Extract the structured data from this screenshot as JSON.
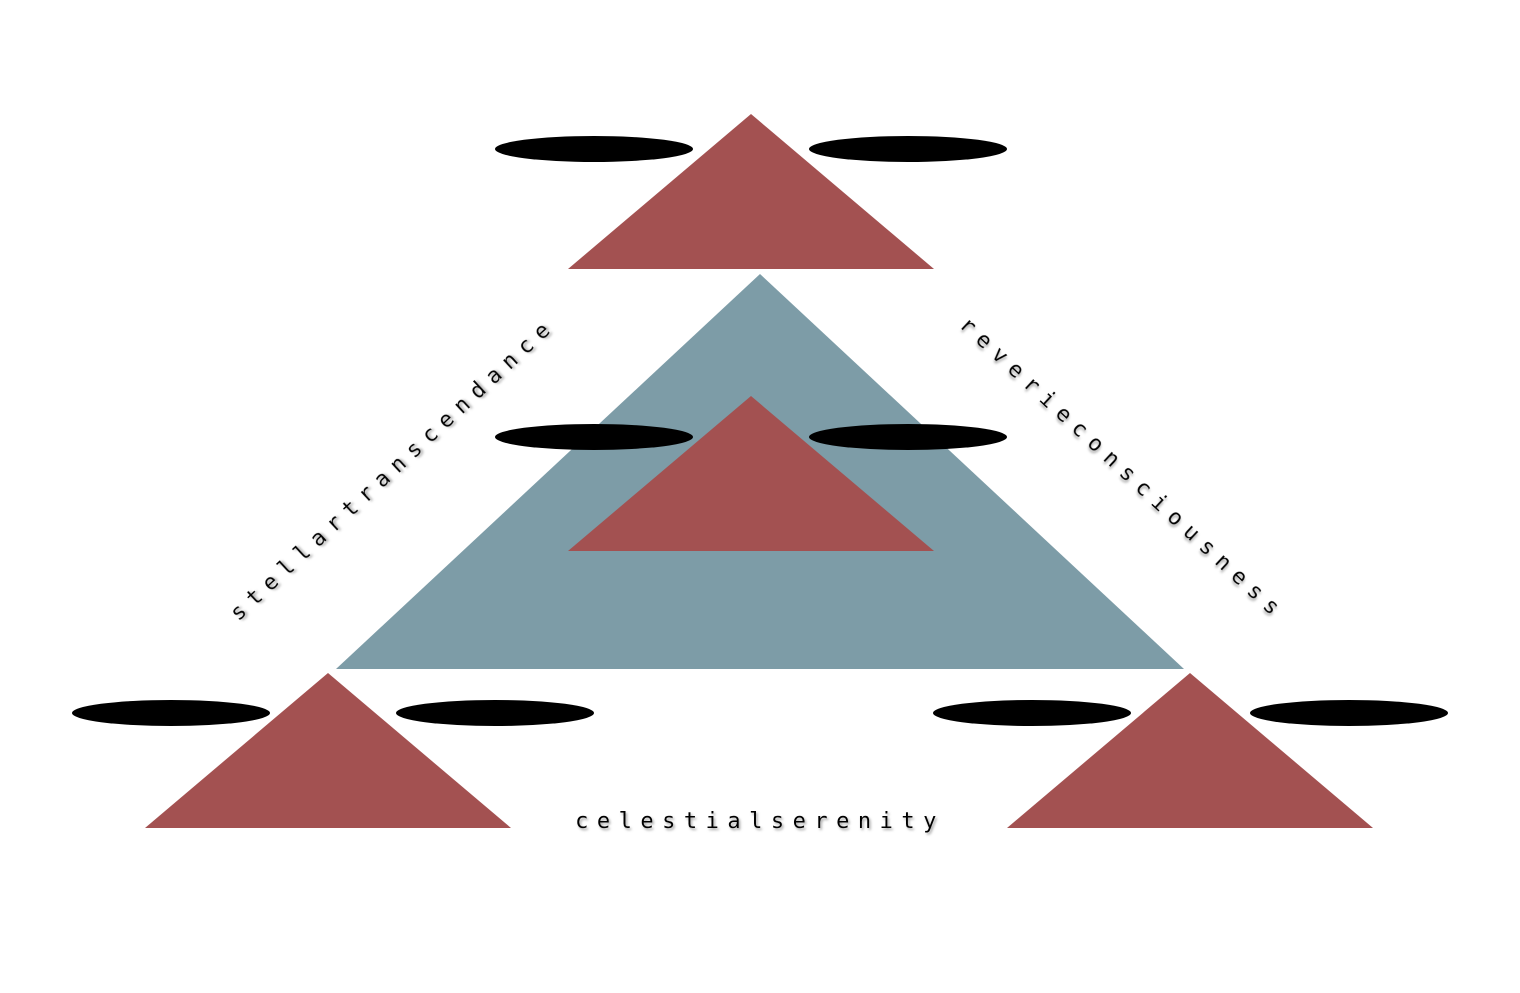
{
  "diagram": {
    "labels": {
      "left": "stellartranscendance",
      "right": "reverieconsciousness",
      "bottom": "celestialserenity"
    },
    "colors": {
      "background": "#ffffff",
      "large_triangle": "#7d9ca7",
      "small_triangle": "#a35151",
      "ellipse": "#000000",
      "label_shadow": "#9a9a9a"
    },
    "shapes": {
      "large_triangle": "triangle",
      "small_triangles": [
        "triangle",
        "triangle",
        "triangle",
        "triangle"
      ],
      "ellipses": [
        "ellipse",
        "ellipse",
        "ellipse",
        "ellipse",
        "ellipse",
        "ellipse",
        "ellipse",
        "ellipse"
      ]
    }
  }
}
